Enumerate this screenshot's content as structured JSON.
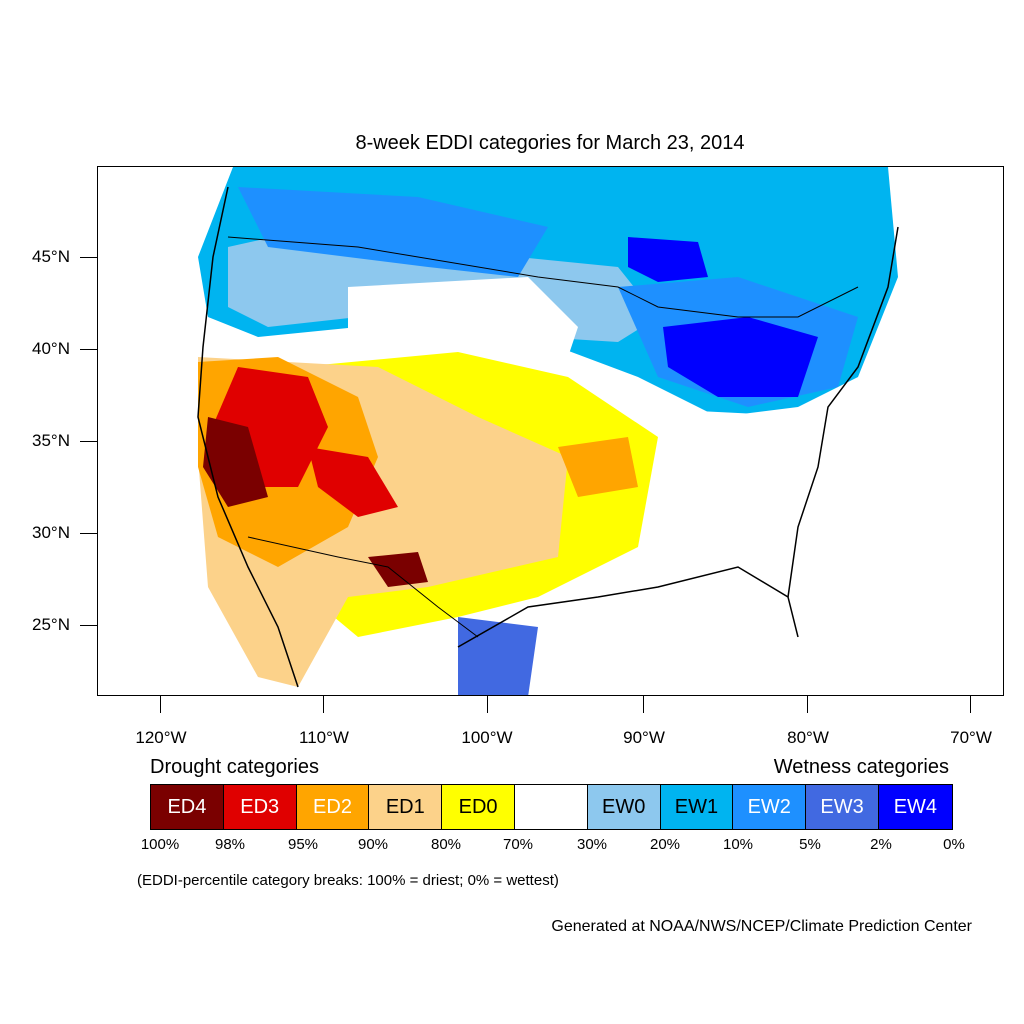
{
  "title": "8-week EDDI categories for March 23, 2014",
  "map": {
    "lat_labels": [
      "45°N",
      "40°N",
      "35°N",
      "30°N",
      "25°N"
    ],
    "lon_labels": [
      "120°W",
      "110°W",
      "100°W",
      "90°W",
      "80°W",
      "70°W"
    ]
  },
  "legend": {
    "drought_heading": "Drought categories",
    "wetness_heading": "Wetness categories",
    "categories": [
      {
        "label": "ED4",
        "color": "#7a0000",
        "text_color": "#ffffff"
      },
      {
        "label": "ED3",
        "color": "#e00000",
        "text_color": "#ffffff"
      },
      {
        "label": "ED2",
        "color": "#ffa500",
        "text_color": "#ffffff"
      },
      {
        "label": "ED1",
        "color": "#fcd28a",
        "text_color": "#000000"
      },
      {
        "label": "ED0",
        "color": "#ffff00",
        "text_color": "#000000"
      },
      {
        "label": "",
        "color": "#ffffff",
        "text_color": "#000000"
      },
      {
        "label": "EW0",
        "color": "#8dc8ee",
        "text_color": "#000000"
      },
      {
        "label": "EW1",
        "color": "#00b4f0",
        "text_color": "#000000"
      },
      {
        "label": "EW2",
        "color": "#1e90ff",
        "text_color": "#ffffff"
      },
      {
        "label": "EW3",
        "color": "#4169e1",
        "text_color": "#ffffff"
      },
      {
        "label": "EW4",
        "color": "#0000ff",
        "text_color": "#ffffff"
      }
    ],
    "breaks": [
      "100%",
      "98%",
      "95%",
      "90%",
      "80%",
      "70%",
      "30%",
      "20%",
      "10%",
      "5%",
      "2%",
      "0%"
    ],
    "note": "(EDDI-percentile category breaks: 100% = driest; 0% = wettest)"
  },
  "credit": "Generated at NOAA/NWS/NCEP/Climate Prediction Center"
}
